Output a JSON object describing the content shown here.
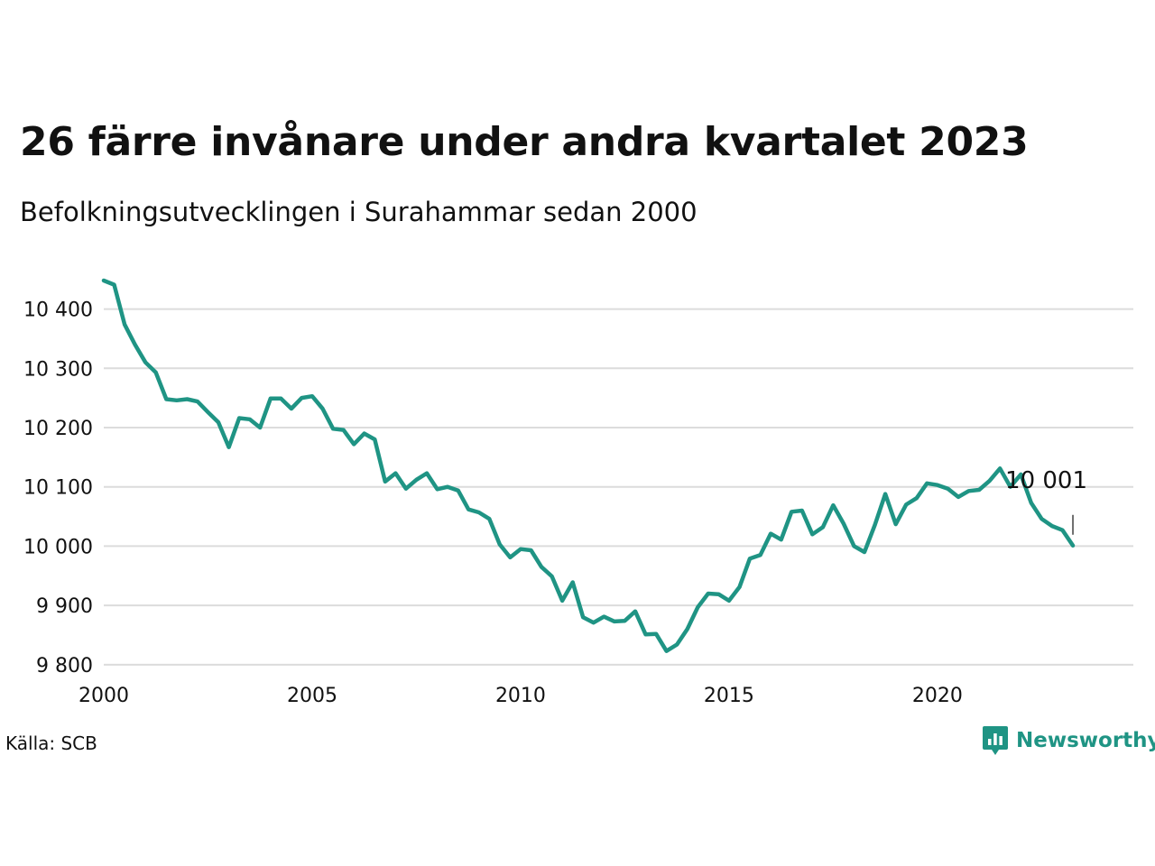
{
  "header": {
    "title": "26 färre invånare under andra kvartalet 2023",
    "subtitle": "Befolkningsutvecklingen i Surahammar sedan 2000"
  },
  "footer": {
    "source": "Källa: SCB",
    "brand": "Newsworthy",
    "brand_icon": "bar-chart-pin-icon",
    "brand_color": "#1f9484"
  },
  "chart_data": {
    "type": "line",
    "xlabel": "",
    "ylabel": "",
    "xlim": [
      2000,
      2024.7
    ],
    "ylim": [
      9780,
      10480
    ],
    "x_ticks": [
      {
        "value": 2000,
        "label": "2000"
      },
      {
        "value": 2005,
        "label": "2005"
      },
      {
        "value": 2010,
        "label": "2010"
      },
      {
        "value": 2015,
        "label": "2015"
      },
      {
        "value": 2020,
        "label": "2020"
      }
    ],
    "y_ticks": [
      {
        "value": 9800,
        "label": "9 800"
      },
      {
        "value": 9900,
        "label": "9 900"
      },
      {
        "value": 10000,
        "label": "10 000"
      },
      {
        "value": 10100,
        "label": "10 100"
      },
      {
        "value": 10200,
        "label": "10 200"
      },
      {
        "value": 10300,
        "label": "10 300"
      },
      {
        "value": 10400,
        "label": "10 400"
      }
    ],
    "grid": "horizontal",
    "line_color": "#1f9484",
    "annotation": {
      "value": 10001,
      "label": "10 001"
    },
    "series": [
      {
        "values": [
          [
            2000.0,
            10448
          ],
          [
            2000.25,
            10441
          ],
          [
            2000.5,
            10374
          ],
          [
            2000.75,
            10340
          ],
          [
            2001.0,
            10310
          ],
          [
            2001.25,
            10293
          ],
          [
            2001.5,
            10248
          ],
          [
            2001.75,
            10246
          ],
          [
            2002.0,
            10248
          ],
          [
            2002.25,
            10244
          ],
          [
            2002.5,
            10226
          ],
          [
            2002.75,
            10209
          ],
          [
            2003.0,
            10167
          ],
          [
            2003.25,
            10216
          ],
          [
            2003.5,
            10214
          ],
          [
            2003.75,
            10200
          ],
          [
            2004.0,
            10249
          ],
          [
            2004.25,
            10249
          ],
          [
            2004.5,
            10232
          ],
          [
            2004.75,
            10250
          ],
          [
            2005.0,
            10253
          ],
          [
            2005.25,
            10232
          ],
          [
            2005.5,
            10198
          ],
          [
            2005.75,
            10196
          ],
          [
            2006.0,
            10172
          ],
          [
            2006.25,
            10190
          ],
          [
            2006.5,
            10180
          ],
          [
            2006.75,
            10109
          ],
          [
            2007.0,
            10123
          ],
          [
            2007.25,
            10097
          ],
          [
            2007.5,
            10112
          ],
          [
            2007.75,
            10123
          ],
          [
            2008.0,
            10096
          ],
          [
            2008.25,
            10100
          ],
          [
            2008.5,
            10094
          ],
          [
            2008.75,
            10062
          ],
          [
            2009.0,
            10057
          ],
          [
            2009.25,
            10046
          ],
          [
            2009.5,
            10003
          ],
          [
            2009.75,
            9981
          ],
          [
            2010.0,
            9995
          ],
          [
            2010.25,
            9993
          ],
          [
            2010.5,
            9965
          ],
          [
            2010.75,
            9949
          ],
          [
            2011.0,
            9908
          ],
          [
            2011.25,
            9939
          ],
          [
            2011.5,
            9880
          ],
          [
            2011.75,
            9871
          ],
          [
            2012.0,
            9881
          ],
          [
            2012.25,
            9873
          ],
          [
            2012.5,
            9874
          ],
          [
            2012.75,
            9890
          ],
          [
            2013.0,
            9851
          ],
          [
            2013.25,
            9852
          ],
          [
            2013.5,
            9823
          ],
          [
            2013.75,
            9834
          ],
          [
            2014.0,
            9860
          ],
          [
            2014.25,
            9897
          ],
          [
            2014.5,
            9920
          ],
          [
            2014.75,
            9919
          ],
          [
            2015.0,
            9908
          ],
          [
            2015.25,
            9931
          ],
          [
            2015.5,
            9979
          ],
          [
            2015.75,
            9985
          ],
          [
            2016.0,
            10021
          ],
          [
            2016.25,
            10011
          ],
          [
            2016.5,
            10058
          ],
          [
            2016.75,
            10060
          ],
          [
            2017.0,
            10020
          ],
          [
            2017.25,
            10032
          ],
          [
            2017.5,
            10069
          ],
          [
            2017.75,
            10038
          ],
          [
            2018.0,
            10000
          ],
          [
            2018.25,
            9990
          ],
          [
            2018.5,
            10036
          ],
          [
            2018.75,
            10088
          ],
          [
            2019.0,
            10037
          ],
          [
            2019.25,
            10070
          ],
          [
            2019.5,
            10081
          ],
          [
            2019.75,
            10106
          ],
          [
            2020.0,
            10103
          ],
          [
            2020.25,
            10097
          ],
          [
            2020.5,
            10083
          ],
          [
            2020.75,
            10093
          ],
          [
            2021.0,
            10095
          ],
          [
            2021.25,
            10110
          ],
          [
            2021.5,
            10131
          ],
          [
            2021.75,
            10100
          ],
          [
            2022.0,
            10121
          ],
          [
            2022.25,
            10073
          ],
          [
            2022.5,
            10046
          ],
          [
            2022.75,
            10034
          ],
          [
            2023.0,
            10027
          ],
          [
            2023.25,
            10001
          ]
        ]
      }
    ]
  }
}
